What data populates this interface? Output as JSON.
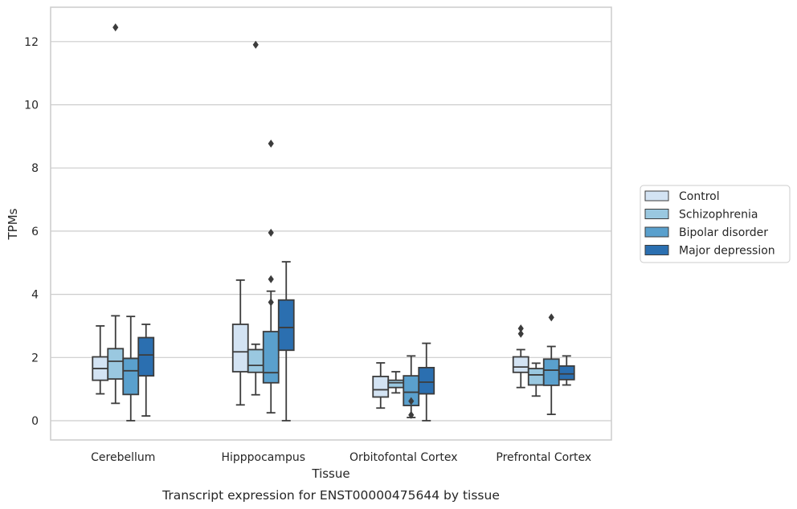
{
  "chart_data": {
    "type": "box",
    "title": "",
    "caption": "Transcript expression for ENST00000475644 by tissue",
    "xlabel": "Tissue",
    "ylabel": "TPMs",
    "ylim": [
      -0.6,
      13.1
    ],
    "yticks": [
      0,
      2,
      4,
      6,
      8,
      10,
      12
    ],
    "grid": "horizontal",
    "legend_position": "right",
    "categories": [
      "Cerebellum",
      "Hipppocampus",
      "Orbitofontal Cortex",
      "Prefrontal Cortex"
    ],
    "series": [
      {
        "name": "Control",
        "color": "#d3e3f3",
        "boxes": [
          {
            "whislo": 0.85,
            "q1": 1.28,
            "med": 1.65,
            "q3": 2.02,
            "whishi": 3.0,
            "fliers": []
          },
          {
            "whislo": 0.5,
            "q1": 1.55,
            "med": 2.18,
            "q3": 3.05,
            "whishi": 4.45,
            "fliers": []
          },
          {
            "whislo": 0.4,
            "q1": 0.75,
            "med": 0.98,
            "q3": 1.4,
            "whishi": 1.83,
            "fliers": []
          },
          {
            "whislo": 1.05,
            "q1": 1.53,
            "med": 1.7,
            "q3": 2.02,
            "whishi": 2.25,
            "fliers": [
              2.75,
              2.92
            ]
          }
        ]
      },
      {
        "name": "Schizophrenia",
        "color": "#9ac8e0",
        "boxes": [
          {
            "whislo": 0.55,
            "q1": 1.32,
            "med": 1.88,
            "q3": 2.28,
            "whishi": 3.32,
            "fliers": [
              12.45
            ]
          },
          {
            "whislo": 0.82,
            "q1": 1.53,
            "med": 1.75,
            "q3": 2.25,
            "whishi": 2.42,
            "fliers": [
              11.9
            ]
          },
          {
            "whislo": 0.88,
            "q1": 1.05,
            "med": 1.2,
            "q3": 1.28,
            "whishi": 1.55,
            "fliers": []
          },
          {
            "whislo": 0.78,
            "q1": 1.13,
            "med": 1.45,
            "q3": 1.65,
            "whishi": 1.82,
            "fliers": []
          }
        ]
      },
      {
        "name": "Bipolar disorder",
        "color": "#5aa0cd",
        "boxes": [
          {
            "whislo": 0.0,
            "q1": 0.83,
            "med": 1.58,
            "q3": 1.97,
            "whishi": 3.3,
            "fliers": []
          },
          {
            "whislo": 0.25,
            "q1": 1.2,
            "med": 1.52,
            "q3": 2.82,
            "whishi": 4.1,
            "fliers": [
              3.75,
              4.48,
              5.95,
              8.77
            ]
          },
          {
            "whislo": 0.1,
            "q1": 0.48,
            "med": 0.9,
            "q3": 1.42,
            "whishi": 2.05,
            "fliers": [
              0.18,
              0.62
            ]
          },
          {
            "whislo": 0.2,
            "q1": 1.12,
            "med": 1.6,
            "q3": 1.95,
            "whishi": 2.35,
            "fliers": [
              3.27
            ]
          }
        ]
      },
      {
        "name": "Major depression",
        "color": "#2b6fb0",
        "boxes": [
          {
            "whislo": 0.15,
            "q1": 1.42,
            "med": 2.08,
            "q3": 2.63,
            "whishi": 3.05,
            "fliers": []
          },
          {
            "whislo": 0.0,
            "q1": 2.23,
            "med": 2.95,
            "q3": 3.82,
            "whishi": 5.03,
            "fliers": []
          },
          {
            "whislo": 0.0,
            "q1": 0.85,
            "med": 1.22,
            "q3": 1.68,
            "whishi": 2.45,
            "fliers": []
          },
          {
            "whislo": 1.13,
            "q1": 1.3,
            "med": 1.48,
            "q3": 1.73,
            "whishi": 2.05,
            "fliers": []
          }
        ]
      }
    ]
  }
}
